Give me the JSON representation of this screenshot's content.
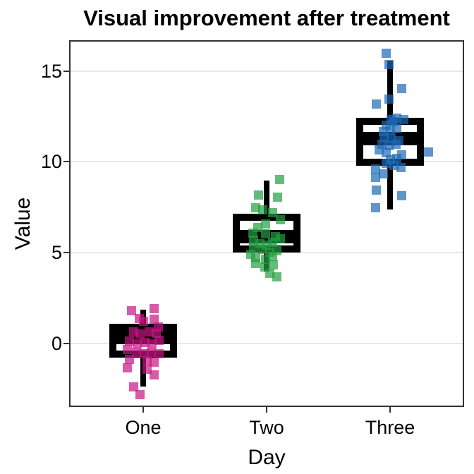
{
  "figure": {
    "title": "Visual improvement after treatment"
  },
  "chart_data": {
    "type": "boxplot",
    "subtype": "boxplot-with-jittered-points",
    "title": "Visual improvement after treatment",
    "xlabel": "Day",
    "ylabel": "Value",
    "categories": [
      "One",
      "Two",
      "Three"
    ],
    "y_ticks": [
      0,
      5,
      10,
      15
    ],
    "y_tick_labels": [
      "0",
      "5",
      "10",
      "15"
    ],
    "ylim": [
      -3.5,
      16.7
    ],
    "grid": "horizontal-major-only",
    "legend": "none",
    "point_shape": "square",
    "point_alpha": 0.7,
    "box_fill": "#ffffff",
    "box_line_color": "#000000",
    "gridline_color": "#e8e8e8",
    "panel_border_color": "#333333",
    "series": [
      {
        "name": "One",
        "color": "#C71585",
        "box": {
          "q1": -0.59,
          "median": 0.33,
          "q3": 0.9,
          "whisker_low": -2.38,
          "whisker_high": 1.88
        },
        "points": [
          [
            1.8,
            -0.097
          ],
          [
            1.91,
            0.091
          ],
          [
            1.21,
            0.0
          ],
          [
            1.33,
            0.086
          ],
          [
            1.37,
            -0.034
          ],
          [
            0.9,
            0.12
          ],
          [
            0.63,
            -0.08
          ],
          [
            0.51,
            -0.023
          ],
          [
            0.63,
            0.046
          ],
          [
            0.55,
            0.103
          ],
          [
            0.12,
            -0.109
          ],
          [
            -0.04,
            -0.051
          ],
          [
            0.04,
            0.017
          ],
          [
            -0.04,
            0.074
          ],
          [
            0.16,
            0.131
          ],
          [
            -0.35,
            -0.126
          ],
          [
            -0.47,
            -0.057
          ],
          [
            -0.55,
            0.006
          ],
          [
            -0.47,
            0.063
          ],
          [
            -0.55,
            0.131
          ],
          [
            -0.86,
            -0.109
          ],
          [
            -0.94,
            0.029
          ],
          [
            -1.02,
            0.091
          ],
          [
            -1.33,
            -0.126
          ],
          [
            -1.41,
            0.034
          ],
          [
            -1.72,
            0.091
          ],
          [
            -2.38,
            -0.08
          ],
          [
            -2.81,
            -0.023
          ]
        ]
      },
      {
        "name": "Two",
        "color": "#229F41",
        "box": {
          "q1": 5.2,
          "median": 5.9,
          "q3": 6.95,
          "whisker_low": 3.95,
          "whisker_high": 8.98
        },
        "points": [
          [
            9.02,
            0.103
          ],
          [
            8.16,
            -0.063
          ],
          [
            8.05,
            0.086
          ],
          [
            7.46,
            -0.086
          ],
          [
            7.34,
            -0.034
          ],
          [
            7.19,
            0.051
          ],
          [
            6.8,
            0.109
          ],
          [
            6.6,
            -0.006
          ],
          [
            6.37,
            -0.074
          ],
          [
            6.09,
            -0.114
          ],
          [
            6.02,
            -0.006
          ],
          [
            5.9,
            0.069
          ],
          [
            5.78,
            0.109
          ],
          [
            5.7,
            -0.103
          ],
          [
            5.51,
            -0.057
          ],
          [
            5.43,
            0.0
          ],
          [
            5.59,
            0.051
          ],
          [
            5.31,
            -0.103
          ],
          [
            5.2,
            -0.034
          ],
          [
            5.04,
            0.023
          ],
          [
            5.12,
            0.08
          ],
          [
            4.92,
            -0.131
          ],
          [
            4.73,
            -0.086
          ],
          [
            4.65,
            -0.006
          ],
          [
            4.8,
            0.051
          ],
          [
            4.41,
            -0.091
          ],
          [
            4.22,
            -0.017
          ],
          [
            4.34,
            0.057
          ],
          [
            3.87,
            0.023
          ],
          [
            3.67,
            0.08
          ]
        ]
      },
      {
        "name": "Three",
        "color": "#1C69B6",
        "box": {
          "q1": 9.98,
          "median": 11.27,
          "q3": 12.23,
          "whisker_low": 7.38,
          "whisker_high": 15.59
        },
        "points": [
          [
            15.98,
            -0.029
          ],
          [
            15.35,
            -0.006
          ],
          [
            14.02,
            0.097
          ],
          [
            13.44,
            -0.006
          ],
          [
            13.2,
            -0.114
          ],
          [
            12.42,
            0.057
          ],
          [
            12.34,
            0.011
          ],
          [
            12.34,
            0.114
          ],
          [
            12.23,
            0.029
          ],
          [
            12.03,
            -0.034
          ],
          [
            11.84,
            0.057
          ],
          [
            11.76,
            0.0
          ],
          [
            11.68,
            -0.057
          ],
          [
            11.37,
            -0.046
          ],
          [
            11.29,
            0.011
          ],
          [
            11.17,
            0.069
          ],
          [
            10.98,
            -0.063
          ],
          [
            10.98,
            0.051
          ],
          [
            10.9,
            -0.006
          ],
          [
            10.66,
            -0.091
          ],
          [
            10.55,
            0.314
          ],
          [
            10.51,
            -0.034
          ],
          [
            10.39,
            0.097
          ],
          [
            10.2,
            0.057
          ],
          [
            10.12,
            0.0
          ],
          [
            9.92,
            -0.029
          ],
          [
            9.8,
            0.029
          ],
          [
            9.69,
            0.086
          ],
          [
            9.61,
            -0.12
          ],
          [
            9.34,
            -0.057
          ],
          [
            9.14,
            -0.12
          ],
          [
            8.44,
            -0.114
          ],
          [
            8.13,
            0.097
          ],
          [
            7.46,
            -0.12
          ]
        ]
      }
    ]
  }
}
